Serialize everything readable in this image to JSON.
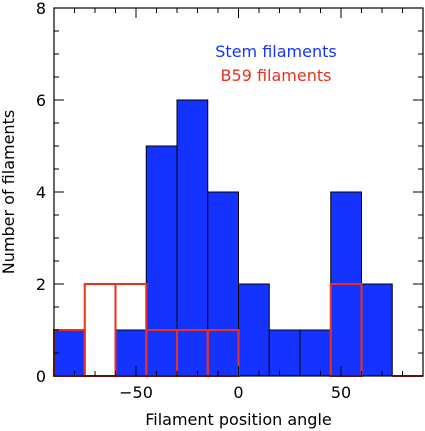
{
  "chart_data": {
    "type": "bar",
    "xlabel": "Filament position angle",
    "ylabel": "Number of filaments",
    "xlim": [
      -90,
      90
    ],
    "ylim": [
      0,
      8
    ],
    "bin_width": 15,
    "x_ticks": [
      "-50",
      "0",
      "50"
    ],
    "x_tick_values": [
      -50,
      0,
      50
    ],
    "y_ticks": [
      "0",
      "2",
      "4",
      "6",
      "8"
    ],
    "y_tick_values": [
      0,
      2,
      4,
      6,
      8
    ],
    "series": [
      {
        "name": "Stem filaments",
        "color": "#1533ff",
        "style": "filled",
        "bins_start": [
          -90,
          -75,
          -60,
          -45,
          -30,
          -15,
          0,
          15,
          30,
          45,
          60,
          75
        ],
        "values": [
          1,
          0,
          1,
          5,
          6,
          4,
          2,
          1,
          1,
          4,
          2,
          0
        ]
      },
      {
        "name": "B59 filaments",
        "color": "#e8321e",
        "style": "outline",
        "bins_start": [
          -90,
          -75,
          -60,
          -45,
          -30,
          -15,
          0,
          15,
          30,
          45,
          60,
          75
        ],
        "values": [
          1,
          2,
          2,
          1,
          1,
          1,
          0,
          0,
          0,
          2,
          0,
          0
        ]
      }
    ],
    "legend_position": "top-right"
  }
}
